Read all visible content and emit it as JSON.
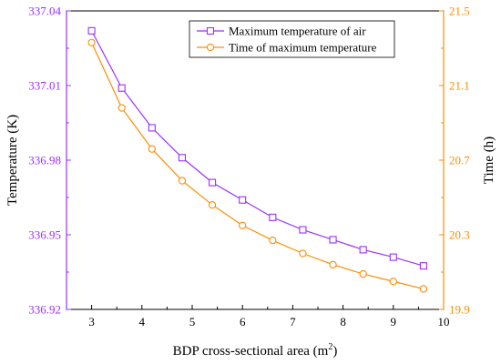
{
  "chart_data": {
    "type": "line",
    "xlabel": "BDP cross-sectional area (m",
    "xlabel_sup": "2",
    "xlabel_close": ")",
    "ylabel_left": "Temperature (K)",
    "ylabel_right": "Time (h)",
    "xlim": [
      2.5,
      10
    ],
    "ylim_left": [
      336.92,
      337.04
    ],
    "ylim_right": [
      19.9,
      21.5
    ],
    "x_ticks": [
      "3",
      "4",
      "5",
      "6",
      "7",
      "8",
      "9",
      "10"
    ],
    "left_ticks": [
      "336.92",
      "336.95",
      "336.98",
      "337.01",
      "337.04"
    ],
    "right_ticks": [
      "19.9",
      "20.3",
      "20.7",
      "21.1",
      "21.5"
    ],
    "legend_position": "top-right",
    "colors": {
      "temperature": "#9b30ff",
      "time": "#ff8c00"
    },
    "x": [
      3.0,
      3.6,
      4.2,
      4.8,
      5.4,
      6.0,
      6.6,
      7.2,
      7.8,
      8.4,
      9.0,
      9.6
    ],
    "series": [
      {
        "name": "Maximum temperature of air",
        "axis": "left",
        "marker": "square",
        "color": "#9b30ff",
        "values": [
          337.032,
          337.009,
          336.993,
          336.981,
          336.971,
          336.964,
          336.957,
          336.952,
          336.948,
          336.944,
          336.941,
          336.9375
        ]
      },
      {
        "name": "Time of maximum temperature",
        "axis": "right",
        "marker": "circle",
        "color": "#ff8c00",
        "values": [
          21.33,
          20.98,
          20.76,
          20.59,
          20.46,
          20.35,
          20.27,
          20.2,
          20.14,
          20.09,
          20.05,
          20.01
        ]
      }
    ]
  }
}
